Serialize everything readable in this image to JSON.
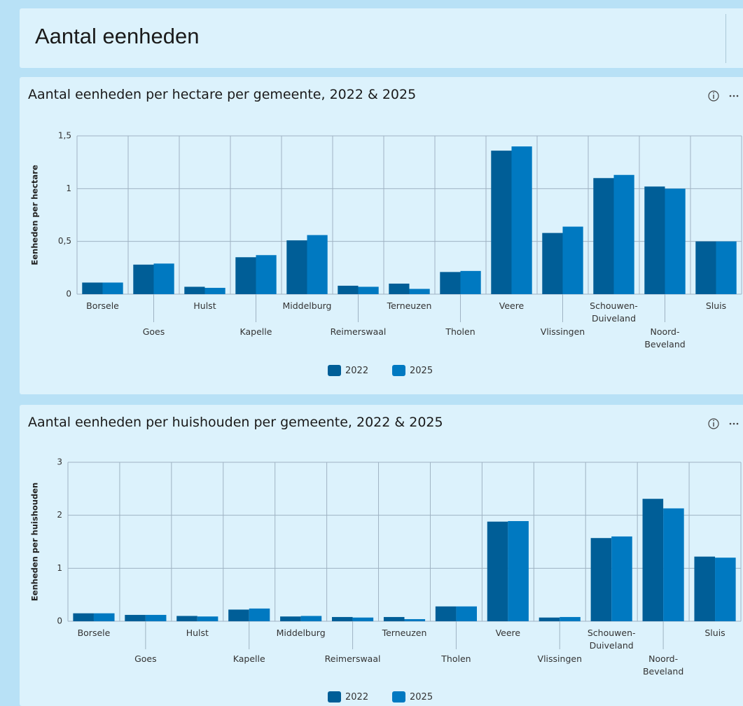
{
  "header": {
    "title": "Aantal eenheden"
  },
  "chart_data": [
    {
      "type": "bar",
      "title": "Aantal eenheden per hectare per gemeente, 2022 & 2025",
      "y_label": "Eenheden per hectare",
      "categories": [
        "Borsele",
        "Goes",
        "Hulst",
        "Kapelle",
        "Middelburg",
        "Reimerswaal",
        "Terneuzen",
        "Tholen",
        "Veere",
        "Vlissingen",
        "Schouwen-Duiveland",
        "Noord-Beveland",
        "Sluis"
      ],
      "series": [
        {
          "name": "2022",
          "color": "#005e97",
          "values": [
            0.11,
            0.28,
            0.07,
            0.35,
            0.51,
            0.08,
            0.1,
            0.21,
            1.36,
            0.58,
            1.1,
            1.02,
            0.5
          ]
        },
        {
          "name": "2025",
          "color": "#0079c1",
          "values": [
            0.11,
            0.29,
            0.06,
            0.37,
            0.56,
            0.07,
            0.05,
            0.22,
            1.4,
            0.64,
            1.13,
            1.0,
            0.5
          ]
        }
      ],
      "ylim": [
        0,
        1.5
      ],
      "yticks": [
        0,
        {
          "value": 0.5,
          "label": "0,5"
        },
        1,
        {
          "value": 1.5,
          "label": "1,5"
        }
      ],
      "grid": true
    },
    {
      "type": "bar",
      "title": "Aantal eenheden per huishouden per gemeente, 2022 & 2025",
      "y_label": "Eenheden per huishouden",
      "categories": [
        "Borsele",
        "Goes",
        "Hulst",
        "Kapelle",
        "Middelburg",
        "Reimerswaal",
        "Terneuzen",
        "Tholen",
        "Veere",
        "Vlissingen",
        "Schouwen-Duiveland",
        "Noord-Beveland",
        "Sluis"
      ],
      "series": [
        {
          "name": "2022",
          "color": "#005e97",
          "values": [
            0.15,
            0.12,
            0.1,
            0.22,
            0.09,
            0.08,
            0.08,
            0.28,
            1.88,
            0.07,
            1.57,
            2.31,
            1.22
          ]
        },
        {
          "name": "2025",
          "color": "#0079c1",
          "values": [
            0.15,
            0.12,
            0.09,
            0.24,
            0.1,
            0.07,
            0.04,
            0.28,
            1.89,
            0.08,
            1.6,
            2.13,
            1.2
          ]
        }
      ],
      "ylim": [
        0,
        3
      ],
      "yticks": [
        0,
        1,
        2,
        3
      ],
      "grid": true
    }
  ]
}
